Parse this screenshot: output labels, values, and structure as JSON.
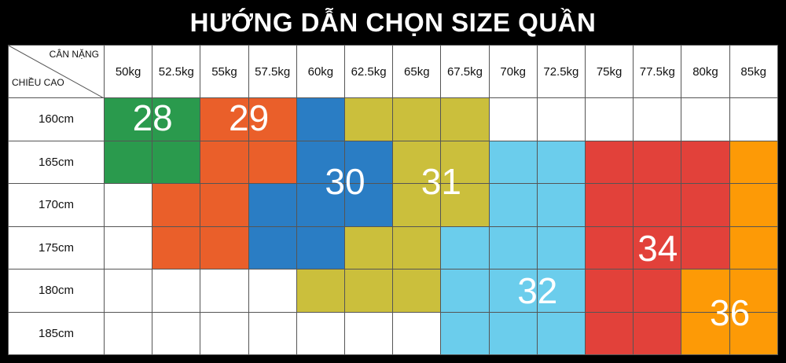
{
  "title": "HƯỚNG DẪN CHỌN SIZE QUẦN",
  "corner": {
    "weight_label": "CÂN NẶNG",
    "height_label": "CHIỀU CAO"
  },
  "weights": [
    "50kg",
    "52.5kg",
    "55kg",
    "57.5kg",
    "60kg",
    "62.5kg",
    "65kg",
    "67.5kg",
    "70kg",
    "72.5kg",
    "75kg",
    "77.5kg",
    "80kg",
    "85kg"
  ],
  "heights": [
    "160cm",
    "165cm",
    "170cm",
    "175cm",
    "180cm",
    "185cm"
  ],
  "colors": {
    "28": "#2a9a4d",
    "29": "#ea5f2a",
    "30": "#2a7dc4",
    "31": "#cbbf3c",
    "32": "#6bcdec",
    "34": "#e2413a",
    "36": "#fd9a06",
    "empty": "#ffffff"
  },
  "size_grid": [
    [
      "28",
      "28",
      "29",
      "29",
      "30",
      "31",
      "31",
      "31",
      "",
      "",
      "",
      "",
      "",
      ""
    ],
    [
      "28",
      "28",
      "29",
      "29",
      "30",
      "30",
      "31",
      "31",
      "32",
      "32",
      "34",
      "34",
      "34",
      "36"
    ],
    [
      "",
      "29",
      "29",
      "30",
      "30",
      "30",
      "31",
      "31",
      "32",
      "32",
      "34",
      "34",
      "34",
      "36"
    ],
    [
      "",
      "29",
      "29",
      "30",
      "30",
      "31",
      "31",
      "32",
      "32",
      "32",
      "34",
      "34",
      "34",
      "36"
    ],
    [
      "",
      "",
      "",
      "",
      "31",
      "31",
      "31",
      "32",
      "32",
      "32",
      "34",
      "34",
      "36",
      "36"
    ],
    [
      "",
      "",
      "",
      "",
      "",
      "",
      "",
      "32",
      "32",
      "32",
      "34",
      "34",
      "36",
      "36"
    ]
  ],
  "size_labels": [
    {
      "text": "28",
      "row": 0.45,
      "col": 1.0
    },
    {
      "text": "29",
      "row": 0.45,
      "col": 3.0
    },
    {
      "text": "30",
      "row": 1.95,
      "col": 5.0
    },
    {
      "text": "31",
      "row": 1.95,
      "col": 7.0
    },
    {
      "text": "32",
      "row": 4.5,
      "col": 9.0
    },
    {
      "text": "34",
      "row": 3.5,
      "col": 11.5
    },
    {
      "text": "36",
      "row": 5.0,
      "col": 13.0
    }
  ]
}
